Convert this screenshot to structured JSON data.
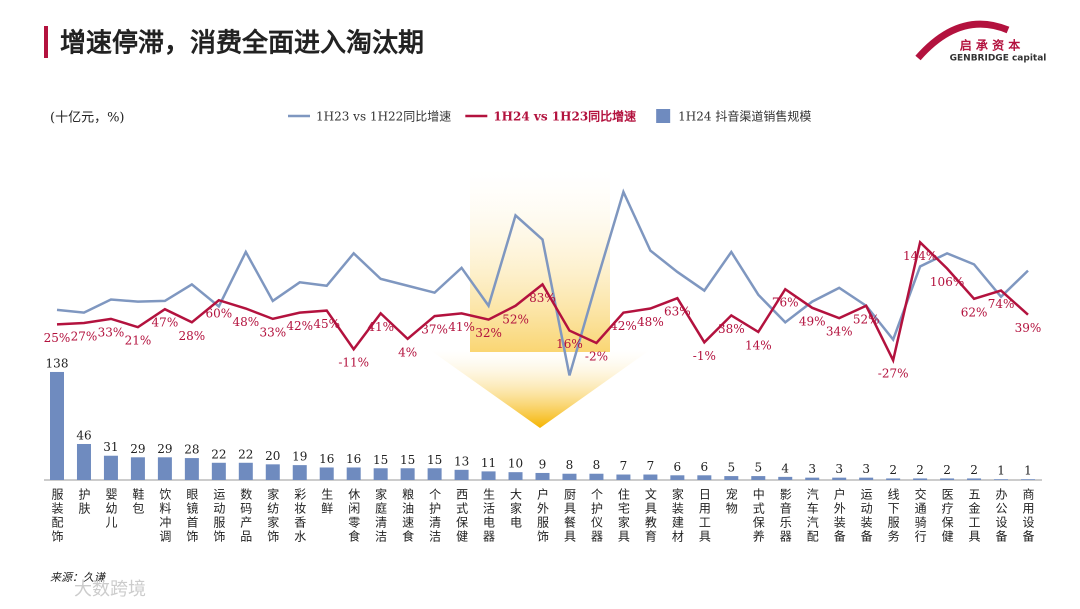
{
  "header": {
    "title": "增速停滞，消费全面进入淘汰期",
    "logo_cn": "启 承 资 本",
    "logo_en": "GENBRIDGE capital"
  },
  "chart_data": {
    "type": "combo",
    "unit_label": "(十亿元，%)",
    "categories": [
      "服装配饰",
      "护肤",
      "婴幼儿",
      "鞋包",
      "饮料冲调",
      "眼镜首饰",
      "运动服饰",
      "数码产品",
      "家纺家饰",
      "彩妆香水",
      "生鲜",
      "休闲零食",
      "家庭清洁",
      "粮油速食",
      "个护清洁",
      "西式保健",
      "生活电器",
      "大家电",
      "户外服饰",
      "厨具餐具",
      "个护仪器",
      "住宅家具",
      "文具教育",
      "家装建材",
      "日用工具",
      "宠物",
      "中式保养",
      "影音乐器",
      "汽车汽配",
      "户外装备",
      "运动装备",
      "线下服务",
      "交通骑行",
      "医疗保健",
      "五金工具",
      "办公设备",
      "商用设备"
    ],
    "ylim": [
      0,
      140
    ],
    "y2lim": [
      -60,
      230
    ],
    "series": [
      {
        "name": "1H23 vs 1H22同比增速",
        "type": "line",
        "axis": "y2",
        "color": "#7f97c0",
        "values": [
          46,
          42,
          61,
          58,
          59,
          83,
          51,
          130,
          59,
          86,
          81,
          128,
          91,
          81,
          71,
          107,
          52,
          183,
          148,
          -49,
          86,
          217,
          132,
          101,
          74,
          130,
          68,
          28,
          58,
          78,
          52,
          3,
          109,
          128,
          112,
          65,
          103
        ]
      },
      {
        "name": "1H24 vs 1H23同比增速",
        "type": "line",
        "axis": "y2",
        "color": "#b3123e",
        "values": [
          25,
          27,
          33,
          21,
          47,
          28,
          60,
          48,
          33,
          42,
          45,
          -11,
          41,
          4,
          37,
          41,
          32,
          52,
          83,
          16,
          -2,
          42,
          48,
          63,
          -1,
          38,
          14,
          76,
          49,
          34,
          52,
          -27,
          144,
          106,
          62,
          74,
          39
        ],
        "value_labels": [
          "25%",
          "27%",
          "33%",
          "21%",
          "47%",
          "28%",
          "60%",
          "48%",
          "33%",
          "42%",
          "45%",
          "-11%",
          "41%",
          "4%",
          "37%",
          "41%",
          "32%",
          "52%",
          "83%",
          "16%",
          "-2%",
          "42%",
          "48%",
          "63%",
          "-1%",
          "38%",
          "14%",
          "76%",
          "49%",
          "34%",
          "52%",
          "-27%",
          "144%",
          "106%",
          "62%",
          "74%",
          "39%"
        ]
      },
      {
        "name": "1H24 抖音渠道销售规模",
        "type": "bar",
        "color": "#6f8bbf",
        "values": [
          138,
          46,
          31,
          29,
          29,
          28,
          22,
          22,
          20,
          19,
          16,
          16,
          15,
          15,
          15,
          13,
          11,
          10,
          9,
          8,
          8,
          7,
          7,
          6,
          6,
          5,
          5,
          4,
          3,
          3,
          3,
          2,
          2,
          2,
          2,
          1,
          1
        ]
      }
    ]
  },
  "source": "来源：久谦",
  "watermark": "大数跨境"
}
